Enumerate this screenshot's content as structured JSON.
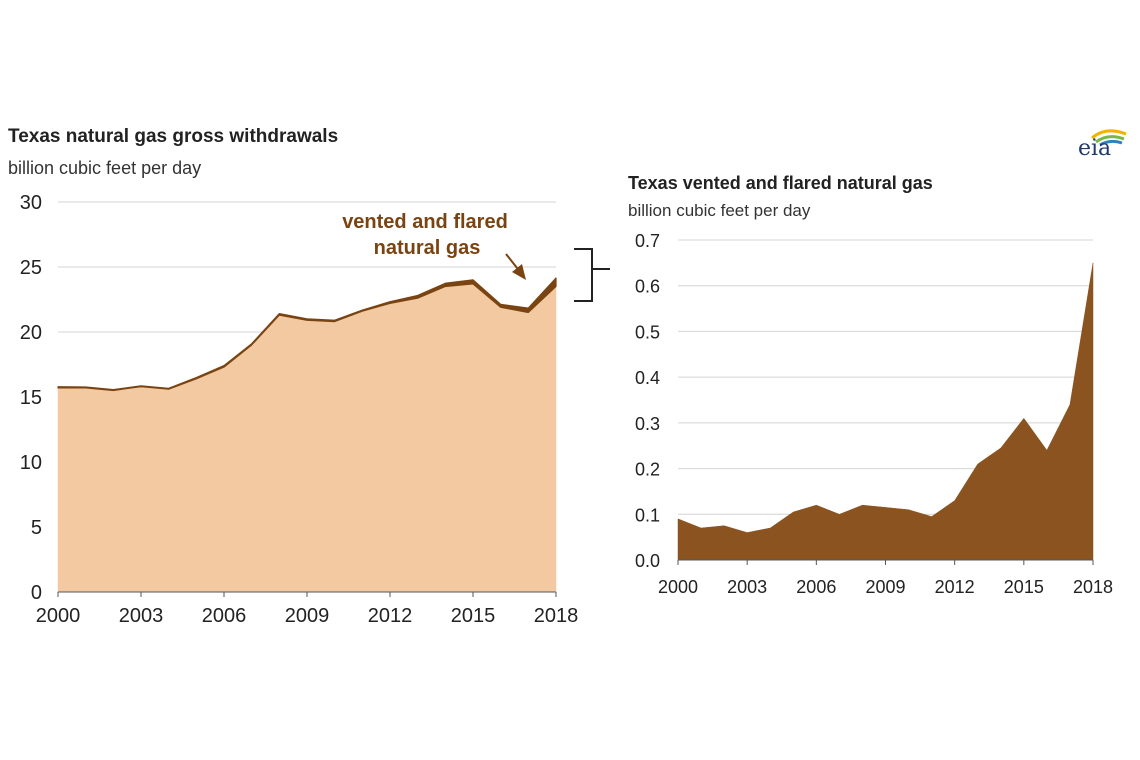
{
  "logo_text": "eia",
  "chart_data": [
    {
      "type": "area",
      "title": "Texas natural gas gross withdrawals",
      "subtitle": "billion cubic feet per day",
      "x": [
        2000,
        2001,
        2002,
        2003,
        2004,
        2005,
        2006,
        2007,
        2008,
        2009,
        2010,
        2011,
        2012,
        2013,
        2014,
        2015,
        2016,
        2017,
        2018
      ],
      "series": [
        {
          "name": "",
          "color": "#f2c9a0",
          "values": [
            15.7,
            15.7,
            15.5,
            15.8,
            15.6,
            16.4,
            17.3,
            19.0,
            21.3,
            20.9,
            20.8,
            21.6,
            22.2,
            22.6,
            23.5,
            23.7,
            21.9,
            21.5,
            23.5
          ]
        },
        {
          "name": "vented and flared natural gas",
          "color": "#7a4412",
          "values": [
            0.09,
            0.07,
            0.07,
            0.06,
            0.07,
            0.1,
            0.12,
            0.1,
            0.12,
            0.11,
            0.11,
            0.09,
            0.13,
            0.21,
            0.25,
            0.31,
            0.23,
            0.34,
            0.65
          ]
        }
      ],
      "annotation": [
        "vented and flared",
        "natural gas"
      ],
      "ylim": [
        0,
        30
      ],
      "yticks": [
        "0",
        "5",
        "10",
        "15",
        "20",
        "25",
        "30"
      ],
      "xticks": [
        "2000",
        "2003",
        "2006",
        "2009",
        "2012",
        "2015",
        "2018"
      ],
      "grid": true
    },
    {
      "type": "area",
      "title": "Texas vented and flared natural gas",
      "subtitle": "billion cubic feet per day",
      "x": [
        2000,
        2001,
        2002,
        2003,
        2004,
        2005,
        2006,
        2007,
        2008,
        2009,
        2010,
        2011,
        2012,
        2013,
        2014,
        2015,
        2016,
        2017,
        2018
      ],
      "series": [
        {
          "name": "",
          "color": "#8b531f",
          "values": [
            0.09,
            0.07,
            0.075,
            0.06,
            0.07,
            0.105,
            0.12,
            0.1,
            0.12,
            0.115,
            0.11,
            0.095,
            0.13,
            0.21,
            0.245,
            0.31,
            0.24,
            0.34,
            0.65
          ]
        }
      ],
      "ylim": [
        0,
        0.7
      ],
      "yticks": [
        "0.0",
        "0.1",
        "0.2",
        "0.3",
        "0.4",
        "0.5",
        "0.6",
        "0.7"
      ],
      "xticks": [
        "2000",
        "2003",
        "2006",
        "2009",
        "2012",
        "2015",
        "2018"
      ],
      "grid": true
    }
  ]
}
